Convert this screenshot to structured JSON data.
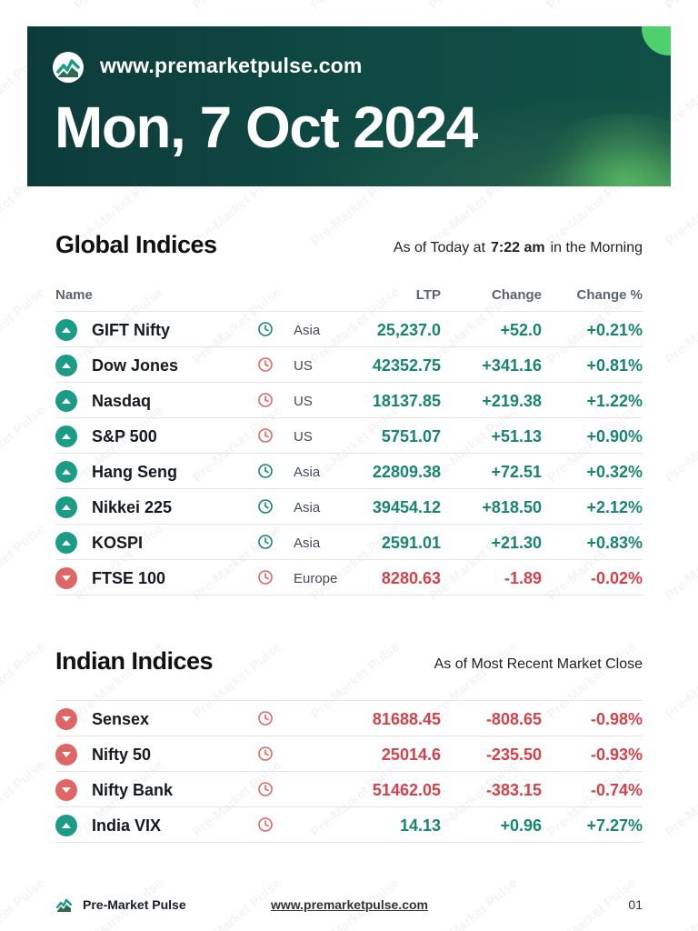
{
  "header": {
    "site_url": "www.premarketpulse.com",
    "date": "Mon, 7 Oct 2024"
  },
  "watermark_text": "Pre-Market Pulse",
  "global": {
    "title": "Global Indices",
    "note_prefix": "As of Today at",
    "note_time": "7:22 am",
    "note_suffix": "in the Morning",
    "columns": {
      "name": "Name",
      "ltp": "LTP",
      "change": "Change",
      "change_pct": "Change %"
    },
    "rows": [
      {
        "name": "GIFT Nifty",
        "region": "Asia",
        "ltp": "25,237.0",
        "change": "+52.0",
        "change_pct": "+0.21%",
        "direction": "up",
        "clock_color": "#17856f"
      },
      {
        "name": "Dow Jones",
        "region": "US",
        "ltp": "42352.75",
        "change": "+341.16",
        "change_pct": "+0.81%",
        "direction": "up",
        "clock_color": "#e06666"
      },
      {
        "name": "Nasdaq",
        "region": "US",
        "ltp": "18137.85",
        "change": "+219.38",
        "change_pct": "+1.22%",
        "direction": "up",
        "clock_color": "#e06666"
      },
      {
        "name": "S&P 500",
        "region": "US",
        "ltp": "5751.07",
        "change": "+51.13",
        "change_pct": "+0.90%",
        "direction": "up",
        "clock_color": "#e06666"
      },
      {
        "name": "Hang Seng",
        "region": "Asia",
        "ltp": "22809.38",
        "change": "+72.51",
        "change_pct": "+0.32%",
        "direction": "up",
        "clock_color": "#17856f"
      },
      {
        "name": "Nikkei 225",
        "region": "Asia",
        "ltp": "39454.12",
        "change": "+818.50",
        "change_pct": "+2.12%",
        "direction": "up",
        "clock_color": "#17856f"
      },
      {
        "name": "KOSPI",
        "region": "Asia",
        "ltp": "2591.01",
        "change": "+21.30",
        "change_pct": "+0.83%",
        "direction": "up",
        "clock_color": "#17856f"
      },
      {
        "name": "FTSE 100",
        "region": "Europe",
        "ltp": "8280.63",
        "change": "-1.89",
        "change_pct": "-0.02%",
        "direction": "down",
        "clock_color": "#e06666"
      }
    ]
  },
  "indian": {
    "title": "Indian Indices",
    "note": "As of Most Recent Market Close",
    "rows": [
      {
        "name": "Sensex",
        "region": "",
        "ltp": "81688.45",
        "change": "-808.65",
        "change_pct": "-0.98%",
        "direction": "down",
        "clock_color": "#e06666"
      },
      {
        "name": "Nifty 50",
        "region": "",
        "ltp": "25014.6",
        "change": "-235.50",
        "change_pct": "-0.93%",
        "direction": "down",
        "clock_color": "#e06666"
      },
      {
        "name": "Nifty Bank",
        "region": "",
        "ltp": "51462.05",
        "change": "-383.15",
        "change_pct": "-0.74%",
        "direction": "down",
        "clock_color": "#e06666"
      },
      {
        "name": "India VIX",
        "region": "",
        "ltp": "14.13",
        "change": "+0.96",
        "change_pct": "+7.27%",
        "direction": "up",
        "clock_color": "#e06666"
      }
    ]
  },
  "footer": {
    "brand": "Pre-Market Pulse",
    "url": "www.premarketpulse.com",
    "page": "01"
  }
}
